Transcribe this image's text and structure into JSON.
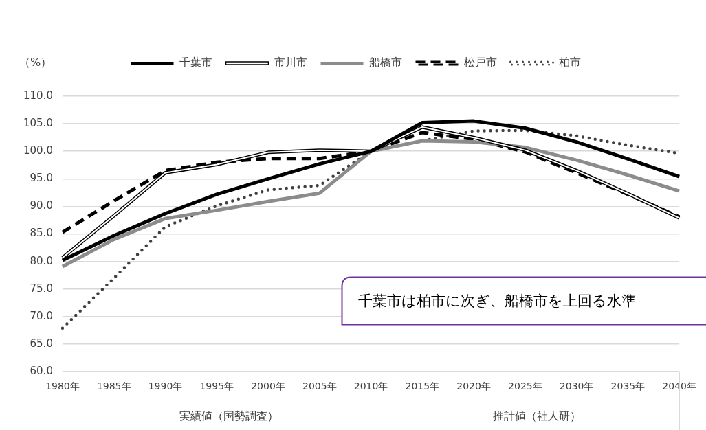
{
  "chart_data": {
    "type": "line",
    "ylabel": "（%）",
    "categories": [
      "1980年",
      "1985年",
      "1990年",
      "1995年",
      "2000年",
      "2005年",
      "2010年",
      "2015年",
      "2020年",
      "2025年",
      "2030年",
      "2035年",
      "2040年"
    ],
    "series": [
      {
        "name": "千葉市",
        "color": "#000000",
        "line_style": "solid",
        "values": [
          80.2,
          84.7,
          88.7,
          92.2,
          95.0,
          97.7,
          100.0,
          105.2,
          105.5,
          104.2,
          101.7,
          98.6,
          95.4
        ]
      },
      {
        "name": "市川市",
        "color": "#000000",
        "line_style": "solid",
        "values": [
          80.7,
          88.3,
          96.1,
          97.6,
          99.8,
          100.2,
          100.0,
          104.4,
          102.5,
          100.2,
          96.5,
          92.3,
          87.9
        ]
      },
      {
        "name": "船橋市",
        "color": "#8c8c8c",
        "line_style": "solid",
        "values": [
          79.1,
          84.0,
          87.8,
          89.3,
          90.9,
          92.4,
          100.0,
          101.9,
          101.7,
          100.7,
          98.4,
          95.7,
          92.8
        ]
      },
      {
        "name": "松戸市",
        "color": "#000000",
        "line_style": "dashed",
        "values": [
          85.3,
          91.0,
          96.5,
          98.0,
          98.7,
          98.7,
          100.0,
          103.4,
          102.2,
          99.9,
          96.1,
          92.2,
          88.1
        ]
      },
      {
        "name": "柏市",
        "color": "#404040",
        "line_style": "dotted",
        "values": [
          67.9,
          77.0,
          86.3,
          90.1,
          93.0,
          93.8,
          100.0,
          101.9,
          103.7,
          103.8,
          102.8,
          101.1,
          99.6
        ]
      }
    ],
    "ylim": [
      60,
      110
    ],
    "yticks": [
      {
        "value": 60,
        "label": "60.0"
      },
      {
        "value": 65,
        "label": "65.0"
      },
      {
        "value": 70,
        "label": "70.0"
      },
      {
        "value": 75,
        "label": "75.0"
      },
      {
        "value": 80,
        "label": "80.0"
      },
      {
        "value": 85,
        "label": "85.0"
      },
      {
        "value": 90,
        "label": "90.0"
      },
      {
        "value": 95,
        "label": "95.0"
      },
      {
        "value": 100,
        "label": "100.0"
      },
      {
        "value": 105,
        "label": "105.0"
      },
      {
        "value": 110,
        "label": "110.0"
      }
    ],
    "grid": "y",
    "legend": "top",
    "marker": "none",
    "annotations": [
      "実績値（国勢調査）",
      "推計値（社人研）",
      "千葉市は柏市に次ぎ、船橋市を上回る水準"
    ]
  }
}
